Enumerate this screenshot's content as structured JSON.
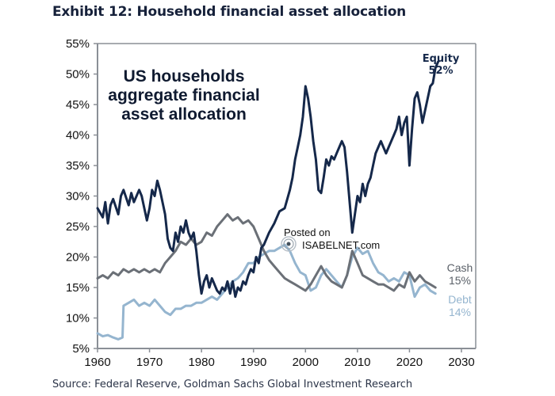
{
  "title": "Exhibit 12: Household financial asset allocation",
  "source": "Source: Federal Reserve, Goldman Sachs Global Investment Research",
  "watermark": {
    "line1": "Posted on",
    "line2": "ISABELNET.com",
    "icon": "isabelnet-logo-icon"
  },
  "chart_data": {
    "type": "line",
    "title": "Exhibit 12: Household financial asset allocation",
    "annotation": [
      "US households",
      "aggregate financial",
      "asset allocation"
    ],
    "xlabel": "",
    "ylabel": "",
    "xlim": [
      1960,
      2030
    ],
    "ylim": [
      5,
      55
    ],
    "x_ticks": [
      "1960",
      "1970",
      "1980",
      "1990",
      "2000",
      "2010",
      "2020",
      "2030"
    ],
    "y_ticks": [
      "5%",
      "10%",
      "15%",
      "20%",
      "25%",
      "30%",
      "35%",
      "40%",
      "45%",
      "50%",
      "55%"
    ],
    "grid": false,
    "series": [
      {
        "name": "Equity",
        "end_label": "Equity",
        "end_value": "52%",
        "color": "#15284a",
        "points": [
          [
            1960,
            28
          ],
          [
            1961,
            26.5
          ],
          [
            1961.5,
            29
          ],
          [
            1962,
            25.5
          ],
          [
            1962.5,
            28.5
          ],
          [
            1963,
            29.5
          ],
          [
            1964,
            27
          ],
          [
            1964.5,
            30
          ],
          [
            1965,
            31
          ],
          [
            1966,
            28.5
          ],
          [
            1966.5,
            30.5
          ],
          [
            1967,
            29
          ],
          [
            1968,
            31
          ],
          [
            1968.5,
            30
          ],
          [
            1969,
            28
          ],
          [
            1969.5,
            26
          ],
          [
            1970,
            28
          ],
          [
            1970.5,
            31
          ],
          [
            1971,
            30
          ],
          [
            1971.5,
            32.5
          ],
          [
            1972,
            31
          ],
          [
            1973,
            27
          ],
          [
            1973.5,
            23
          ],
          [
            1974,
            21.5
          ],
          [
            1974.5,
            21
          ],
          [
            1975,
            24
          ],
          [
            1975.5,
            22.5
          ],
          [
            1976,
            25
          ],
          [
            1976.5,
            24
          ],
          [
            1977,
            26
          ],
          [
            1977.5,
            24
          ],
          [
            1978,
            23
          ],
          [
            1978.5,
            24
          ],
          [
            1979,
            21
          ],
          [
            1979.5,
            17
          ],
          [
            1980,
            14
          ],
          [
            1980.5,
            16
          ],
          [
            1981,
            17
          ],
          [
            1981.5,
            15
          ],
          [
            1982,
            16.5
          ],
          [
            1983,
            14.5
          ],
          [
            1983.5,
            14
          ],
          [
            1984,
            15
          ],
          [
            1984.5,
            14.5
          ],
          [
            1985,
            16
          ],
          [
            1985.5,
            14
          ],
          [
            1986,
            16
          ],
          [
            1986.5,
            13.5
          ],
          [
            1987,
            15
          ],
          [
            1987.5,
            14.5
          ],
          [
            1988,
            16
          ],
          [
            1988.5,
            15.5
          ],
          [
            1989,
            17
          ],
          [
            1989.5,
            18
          ],
          [
            1990,
            17.5
          ],
          [
            1990.5,
            20
          ],
          [
            1991,
            19
          ],
          [
            1991.5,
            21.5
          ],
          [
            1992,
            22
          ],
          [
            1993,
            24
          ],
          [
            1994,
            25.5
          ],
          [
            1995,
            27.5
          ],
          [
            1996,
            28
          ],
          [
            1997,
            31
          ],
          [
            1997.5,
            33
          ],
          [
            1998,
            36
          ],
          [
            1998.5,
            38
          ],
          [
            1999,
            40
          ],
          [
            1999.5,
            43
          ],
          [
            2000,
            48
          ],
          [
            2000.5,
            46
          ],
          [
            2001,
            43
          ],
          [
            2001.5,
            39
          ],
          [
            2002,
            36
          ],
          [
            2002.5,
            31
          ],
          [
            2003,
            30.5
          ],
          [
            2003.5,
            33
          ],
          [
            2004,
            36
          ],
          [
            2004.5,
            35
          ],
          [
            2005,
            36.5
          ],
          [
            2005.5,
            36
          ],
          [
            2006,
            37
          ],
          [
            2006.5,
            38
          ],
          [
            2007,
            39
          ],
          [
            2007.5,
            38
          ],
          [
            2008,
            34
          ],
          [
            2008.5,
            29
          ],
          [
            2009,
            24
          ],
          [
            2009.5,
            27
          ],
          [
            2010,
            30
          ],
          [
            2010.5,
            29
          ],
          [
            2011,
            32
          ],
          [
            2011.5,
            30
          ],
          [
            2012,
            32
          ],
          [
            2012.5,
            33
          ],
          [
            2013,
            35
          ],
          [
            2013.5,
            37
          ],
          [
            2014,
            38
          ],
          [
            2014.5,
            39
          ],
          [
            2015,
            38
          ],
          [
            2015.5,
            37
          ],
          [
            2016,
            38
          ],
          [
            2016.5,
            39
          ],
          [
            2017,
            40
          ],
          [
            2017.5,
            41
          ],
          [
            2018,
            43
          ],
          [
            2018.5,
            40
          ],
          [
            2019,
            42
          ],
          [
            2019.5,
            43
          ],
          [
            2020,
            35
          ],
          [
            2020.5,
            41
          ],
          [
            2021,
            46
          ],
          [
            2021.5,
            47
          ],
          [
            2022,
            45
          ],
          [
            2022.5,
            42
          ],
          [
            2023,
            44
          ],
          [
            2023.5,
            46
          ],
          [
            2024,
            48
          ],
          [
            2024.5,
            48.5
          ],
          [
            2025,
            51
          ],
          [
            2025.5,
            52
          ]
        ]
      },
      {
        "name": "Cash",
        "end_label": "Cash",
        "end_value": "15%",
        "color": "#6b7077",
        "points": [
          [
            1960,
            16.5
          ],
          [
            1961,
            17
          ],
          [
            1962,
            16.5
          ],
          [
            1963,
            17.5
          ],
          [
            1964,
            17
          ],
          [
            1965,
            18
          ],
          [
            1966,
            17.5
          ],
          [
            1967,
            18
          ],
          [
            1968,
            17.5
          ],
          [
            1969,
            18
          ],
          [
            1970,
            17.5
          ],
          [
            1971,
            18
          ],
          [
            1972,
            17.5
          ],
          [
            1973,
            19
          ],
          [
            1974,
            20
          ],
          [
            1975,
            21
          ],
          [
            1976,
            22.5
          ],
          [
            1977,
            22
          ],
          [
            1978,
            23
          ],
          [
            1979,
            22
          ],
          [
            1980,
            22.5
          ],
          [
            1981,
            24
          ],
          [
            1982,
            23.5
          ],
          [
            1983,
            25
          ],
          [
            1984,
            26
          ],
          [
            1985,
            27
          ],
          [
            1986,
            26
          ],
          [
            1987,
            26.5
          ],
          [
            1988,
            25.5
          ],
          [
            1989,
            26
          ],
          [
            1990,
            25
          ],
          [
            1991,
            23
          ],
          [
            1992,
            21
          ],
          [
            1993,
            19.5
          ],
          [
            1994,
            18.5
          ],
          [
            1995,
            17.5
          ],
          [
            1996,
            16.5
          ],
          [
            1997,
            16
          ],
          [
            1998,
            15.5
          ],
          [
            1999,
            15
          ],
          [
            2000,
            14.5
          ],
          [
            2001,
            15.5
          ],
          [
            2002,
            17
          ],
          [
            2003,
            18.5
          ],
          [
            2004,
            17
          ],
          [
            2005,
            16
          ],
          [
            2006,
            15.5
          ],
          [
            2007,
            15
          ],
          [
            2008,
            17
          ],
          [
            2009,
            21
          ],
          [
            2010,
            19
          ],
          [
            2011,
            17
          ],
          [
            2012,
            16.5
          ],
          [
            2013,
            16
          ],
          [
            2014,
            15.5
          ],
          [
            2015,
            15.5
          ],
          [
            2016,
            15
          ],
          [
            2017,
            14.5
          ],
          [
            2018,
            15.5
          ],
          [
            2019,
            15
          ],
          [
            2020,
            17.5
          ],
          [
            2021,
            16
          ],
          [
            2022,
            17
          ],
          [
            2023,
            16
          ],
          [
            2024,
            15.5
          ],
          [
            2025,
            15
          ]
        ]
      },
      {
        "name": "Debt",
        "end_label": "Debt",
        "end_value": "14%",
        "color": "#95b5cf",
        "points": [
          [
            1960,
            7.5
          ],
          [
            1961,
            7
          ],
          [
            1962,
            7.2
          ],
          [
            1963,
            6.8
          ],
          [
            1964,
            6.5
          ],
          [
            1964.8,
            6.8
          ],
          [
            1965,
            12
          ],
          [
            1966,
            12.5
          ],
          [
            1967,
            13
          ],
          [
            1968,
            12
          ],
          [
            1969,
            12.5
          ],
          [
            1970,
            12
          ],
          [
            1971,
            13
          ],
          [
            1972,
            12
          ],
          [
            1973,
            11
          ],
          [
            1974,
            10.5
          ],
          [
            1975,
            11.5
          ],
          [
            1976,
            11.5
          ],
          [
            1977,
            12
          ],
          [
            1978,
            12
          ],
          [
            1979,
            12.5
          ],
          [
            1980,
            12.5
          ],
          [
            1981,
            13
          ],
          [
            1982,
            13.5
          ],
          [
            1983,
            13
          ],
          [
            1984,
            14
          ],
          [
            1985,
            15
          ],
          [
            1986,
            16
          ],
          [
            1987,
            16.5
          ],
          [
            1988,
            17.5
          ],
          [
            1989,
            19
          ],
          [
            1990,
            19
          ],
          [
            1991,
            20
          ],
          [
            1992,
            20.5
          ],
          [
            1993,
            21
          ],
          [
            1994,
            21
          ],
          [
            1995,
            21.5
          ],
          [
            1996,
            22
          ],
          [
            1997,
            21
          ],
          [
            1998,
            19
          ],
          [
            1999,
            17.5
          ],
          [
            2000,
            17
          ],
          [
            2001,
            14.5
          ],
          [
            2002,
            15
          ],
          [
            2003,
            17
          ],
          [
            2004,
            18
          ],
          [
            2005,
            17
          ],
          [
            2006,
            16
          ],
          [
            2007,
            15
          ],
          [
            2008,
            17
          ],
          [
            2009,
            20
          ],
          [
            2010,
            21.5
          ],
          [
            2011,
            20.5
          ],
          [
            2012,
            21
          ],
          [
            2013,
            19
          ],
          [
            2014,
            17.5
          ],
          [
            2015,
            17
          ],
          [
            2016,
            16
          ],
          [
            2017,
            16.5
          ],
          [
            2018,
            16
          ],
          [
            2019,
            17.5
          ],
          [
            2020,
            17
          ],
          [
            2021,
            13.5
          ],
          [
            2022,
            15
          ],
          [
            2023,
            15.5
          ],
          [
            2024,
            14.5
          ],
          [
            2025,
            14
          ]
        ]
      }
    ]
  }
}
